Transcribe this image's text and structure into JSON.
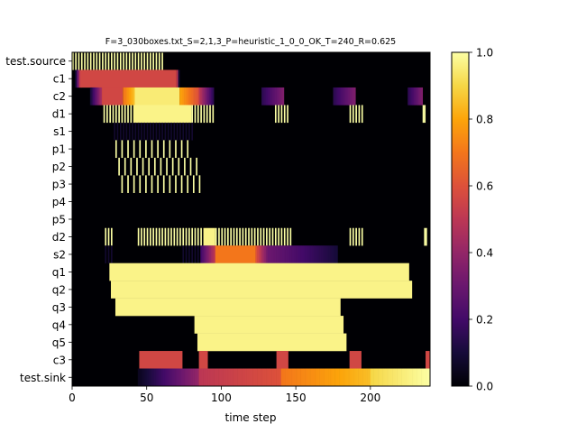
{
  "chart_data": {
    "type": "heatmap",
    "title": "F=3_030boxes.txt_S=2,1,3_P=heuristic_1_0_0_OK_T=240_R=0.625",
    "xlabel": "time step",
    "ylabel": "",
    "xlim": [
      0,
      240
    ],
    "xticks": [
      0,
      50,
      100,
      150,
      200
    ],
    "rows": [
      "test.source",
      "c1",
      "c2",
      "d1",
      "s1",
      "p1",
      "p2",
      "p3",
      "p4",
      "p5",
      "d2",
      "s2",
      "q1",
      "q2",
      "q3",
      "q4",
      "q5",
      "c3",
      "test.sink"
    ],
    "colorbar": {
      "colormap": "inferno",
      "range": [
        0.0,
        1.0
      ],
      "ticks": [
        0.0,
        0.2,
        0.4,
        0.6,
        0.8,
        1.0
      ]
    },
    "segments": {
      "test.source": [
        [
          0,
          61,
          "stripe",
          1.0,
          2
        ]
      ],
      "c1": [
        [
          2,
          6,
          "ramp",
          0.1,
          0.55
        ],
        [
          6,
          70,
          "solid",
          0.56
        ],
        [
          70,
          72,
          "ramp",
          0.5,
          0.1
        ]
      ],
      "c2": [
        [
          12,
          20,
          "ramp",
          0.1,
          0.45
        ],
        [
          20,
          34,
          "solid",
          0.56
        ],
        [
          34,
          42,
          "ramp",
          0.7,
          0.85
        ],
        [
          42,
          72,
          "solid",
          0.95
        ],
        [
          72,
          85,
          "ramp",
          0.8,
          0.6
        ],
        [
          85,
          95,
          "ramp",
          0.5,
          0.15
        ],
        [
          127,
          142,
          "ramp",
          0.15,
          0.35
        ],
        [
          175,
          190,
          "ramp",
          0.15,
          0.35
        ],
        [
          225,
          235,
          "ramp",
          0.15,
          0.35
        ]
      ],
      "d1": [
        [
          21,
          41,
          "stripe",
          1.0,
          2
        ],
        [
          41,
          80,
          "solid",
          0.97
        ],
        [
          80,
          95,
          "stripe",
          1.0,
          2
        ],
        [
          136,
          145,
          "stripe",
          1.0,
          2
        ],
        [
          186,
          195,
          "stripe",
          1.0,
          2
        ],
        [
          235,
          237,
          "stripe",
          1.0,
          1
        ]
      ],
      "s1": [
        [
          28,
          82,
          "stripe",
          0.08,
          2
        ]
      ],
      "p1": [
        [
          29,
          81,
          "stripe",
          1.0,
          4
        ]
      ],
      "p2": [
        [
          31,
          84,
          "stripe",
          1.0,
          4
        ]
      ],
      "p3": [
        [
          33,
          86,
          "stripe",
          1.0,
          4
        ]
      ],
      "p4": [],
      "p5": [],
      "d2": [
        [
          22,
          27,
          "stripe",
          1.0,
          2
        ],
        [
          44,
          88,
          "stripe",
          1.0,
          2
        ],
        [
          88,
          96,
          "solid",
          0.97
        ],
        [
          96,
          148,
          "stripe",
          1.0,
          2
        ],
        [
          186,
          196,
          "stripe",
          1.0,
          2
        ],
        [
          236,
          238,
          "stripe",
          1.0,
          1
        ]
      ],
      "s2": [
        [
          22,
          28,
          "stripe",
          0.08,
          2
        ],
        [
          74,
          86,
          "stripe",
          0.08,
          2
        ],
        [
          86,
          96,
          "ramp",
          0.2,
          0.5
        ],
        [
          96,
          123,
          "solid",
          0.7
        ],
        [
          123,
          132,
          "ramp",
          0.6,
          0.3
        ],
        [
          132,
          178,
          "ramp",
          0.3,
          0.1
        ]
      ],
      "q1": [
        [
          25,
          226,
          "solid",
          0.97
        ]
      ],
      "q2": [
        [
          26,
          228,
          "solid",
          0.97
        ]
      ],
      "q3": [
        [
          29,
          180,
          "solid",
          0.97
        ]
      ],
      "q4": [
        [
          82,
          182,
          "solid",
          0.97
        ]
      ],
      "q5": [
        [
          84,
          184,
          "solid",
          0.97
        ]
      ],
      "c3": [
        [
          45,
          74,
          "solid",
          0.56
        ],
        [
          85,
          91,
          "solid",
          0.56
        ],
        [
          137,
          145,
          "solid",
          0.56
        ],
        [
          186,
          194,
          "solid",
          0.56
        ],
        [
          237,
          240,
          "solid",
          0.56
        ]
      ],
      "test.sink": [
        [
          44,
          85,
          "ramp",
          0.05,
          0.4
        ],
        [
          85,
          140,
          "ramp",
          0.5,
          0.6
        ],
        [
          140,
          200,
          "ramp",
          0.7,
          0.85
        ],
        [
          200,
          240,
          "ramp",
          0.9,
          1.0
        ]
      ]
    }
  }
}
